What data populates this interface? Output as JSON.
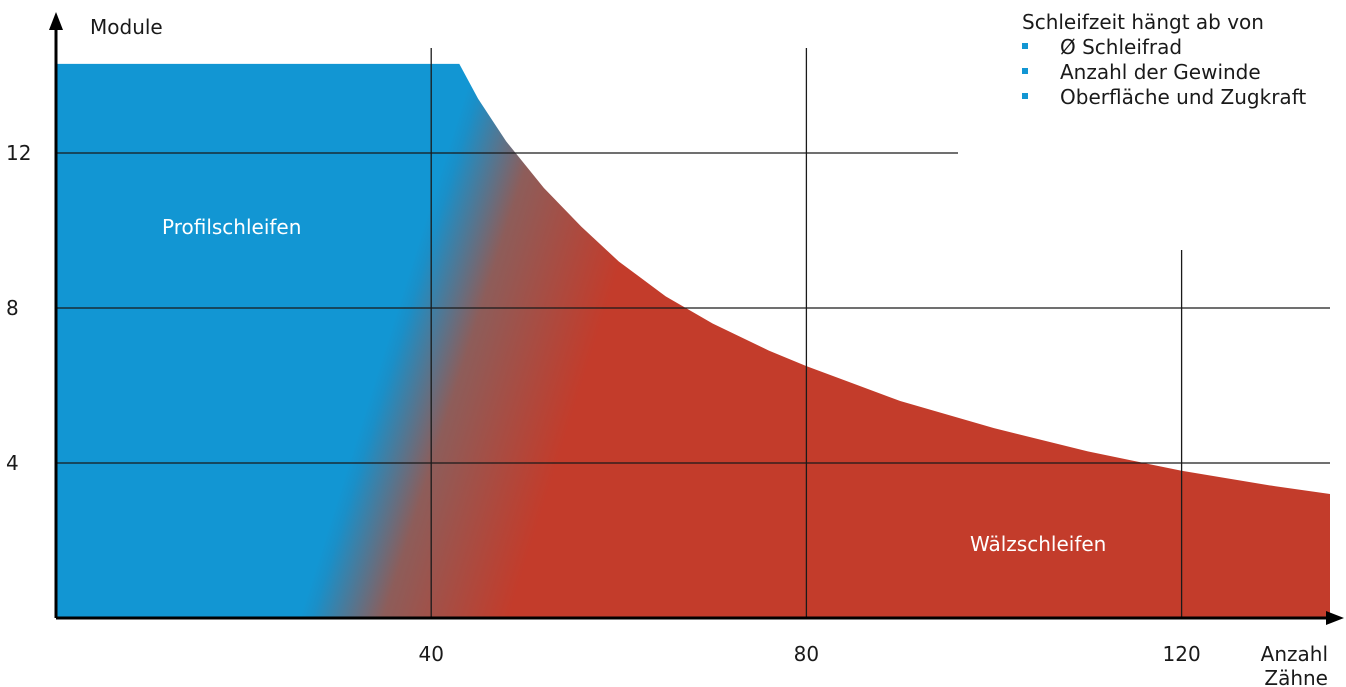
{
  "chart_data": {
    "type": "area",
    "ylabel": "Module",
    "xlabel_line1": "Anzahl",
    "xlabel_line2": "Zähne",
    "x_ticks": [
      "40",
      "80",
      "120"
    ],
    "y_ticks": [
      "12",
      "8",
      "4"
    ],
    "xlim": [
      0,
      135
    ],
    "ylim": [
      0,
      15
    ],
    "grid": true,
    "boundary_curve": {
      "x": [
        43,
        45,
        48,
        52,
        56,
        60,
        65,
        70,
        76,
        80,
        90,
        100,
        110,
        120,
        130,
        136
      ],
      "y": [
        14.3,
        13.4,
        12.3,
        11.1,
        10.1,
        9.2,
        8.3,
        7.6,
        6.9,
        6.5,
        5.6,
        4.9,
        4.3,
        3.8,
        3.4,
        3.2
      ]
    },
    "regions": [
      {
        "name": "Profilschleifen",
        "color": "#1296d3"
      },
      {
        "name": "Wälzschleifen",
        "color": "#c33c2b"
      }
    ],
    "legend": {
      "title": "Schleifzeit hängt ab von",
      "items": [
        "Ø Schleifrad",
        "Anzahl der Gewinde",
        "Oberfläche und Zugkraft"
      ],
      "bullet_color": "#1296d3"
    }
  }
}
